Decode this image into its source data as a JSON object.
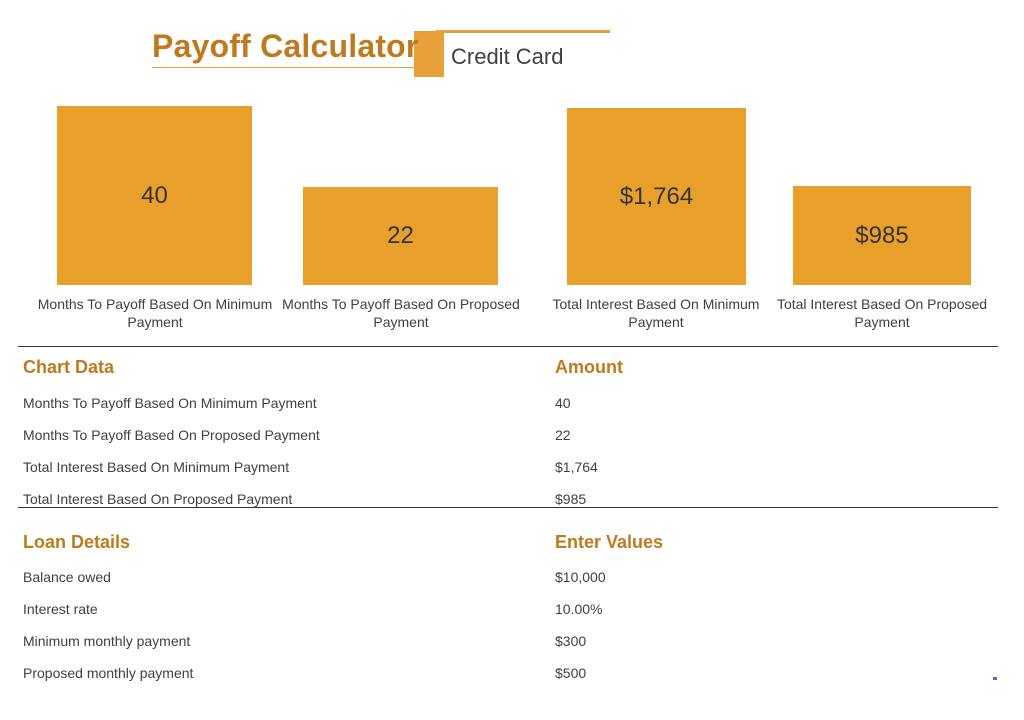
{
  "header": {
    "title": "Payoff Calculator",
    "subtitle": "Credit Card"
  },
  "chart_data": {
    "type": "bar",
    "groups": [
      {
        "categories": [
          "Months To Payoff Based On Minimum Payment",
          "Months To Payoff Based On Proposed Payment"
        ],
        "values": [
          40,
          22
        ],
        "data_labels": [
          "40",
          "22"
        ]
      },
      {
        "categories": [
          "Total Interest Based On Minimum Payment",
          "Total Interest Based On Proposed Payment"
        ],
        "values": [
          1764,
          985
        ],
        "data_labels": [
          "$1,764",
          "$985"
        ]
      }
    ],
    "bar_color": "#E9A02B"
  },
  "chart_table": {
    "heading": "Chart Data",
    "value_heading": "Amount",
    "rows": [
      {
        "label": "Months To Payoff Based On Minimum Payment",
        "value": "40"
      },
      {
        "label": "Months To Payoff Based On Proposed Payment",
        "value": "22"
      },
      {
        "label": "Total Interest Based On Minimum Payment",
        "value": "$1,764"
      },
      {
        "label": "Total Interest Based On Proposed Payment",
        "value": "$985"
      }
    ]
  },
  "loan_details": {
    "heading": "Loan Details",
    "value_heading": "Enter Values",
    "rows": [
      {
        "label": "Balance owed",
        "value": "$10,000"
      },
      {
        "label": "Interest rate",
        "value": "10.00%"
      },
      {
        "label": "Minimum monthly payment",
        "value": "$300"
      },
      {
        "label": "Proposed monthly payment",
        "value": "$500"
      }
    ]
  },
  "colors": {
    "accent": "#E9A02B",
    "heading": "#C07A1E",
    "text": "#404040"
  }
}
